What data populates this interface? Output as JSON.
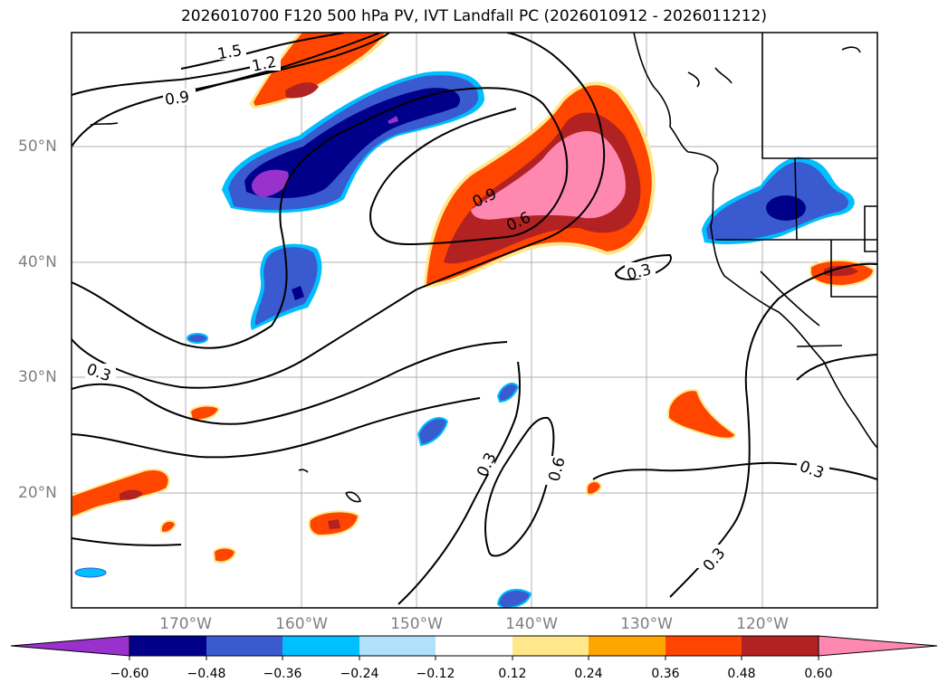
{
  "title": "2026010700 F120 500 hPa PV, IVT Landfall PC (2026010912 - 2026011212)",
  "latitude_labels": [
    "50°N",
    "40°N",
    "30°N",
    "20°N"
  ],
  "longitude_labels": [
    "170°W",
    "160°W",
    "150°W",
    "140°W",
    "130°W",
    "120°W"
  ],
  "contour_labels": [
    "1.5",
    "1.2",
    "0.9",
    "0.9",
    "0.6",
    "0.3",
    "0.3",
    "0.3",
    "0.6",
    "0.3",
    "0.3"
  ],
  "colorbar": {
    "ticks": [
      "−0.60",
      "−0.48",
      "−0.36",
      "−0.24",
      "−0.12",
      "0.12",
      "0.24",
      "0.36",
      "0.48",
      "0.60"
    ],
    "colors": {
      "lt_neg060": "#9932cc",
      "neg060_neg048": "#00008b",
      "neg048_neg036": "#3a5bd0",
      "neg036_neg024": "#00bfff",
      "neg024_neg012": "#b0e0fa",
      "neg012_012": "#ffffff",
      "p012_024": "#ffe88a",
      "p024_036": "#ffa500",
      "p036_048": "#ff4500",
      "p048_060": "#b22222",
      "gt_060": "#ff88b0"
    }
  }
}
